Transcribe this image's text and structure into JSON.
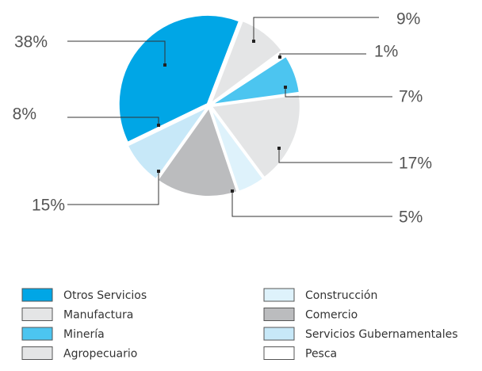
{
  "chart_data": {
    "type": "pie",
    "categories": [
      "Manufactura",
      "Pesca",
      "Minería",
      "Agropecuario",
      "Construcción",
      "Comercio",
      "Servicios Gubernamentales",
      "Otros Servicios"
    ],
    "values": [
      9,
      1,
      7,
      17,
      5,
      15,
      8,
      38
    ],
    "value_labels": [
      "9%",
      "1%",
      "7%",
      "17%",
      "5%",
      "15%",
      "8%",
      "38%"
    ],
    "colors": [
      "#e4e5e6",
      "#ffffff",
      "#4cc5f0",
      "#e4e5e6",
      "#def2fb",
      "#bbbcbe",
      "#c7e8f8",
      "#00a6e6"
    ]
  }
}
